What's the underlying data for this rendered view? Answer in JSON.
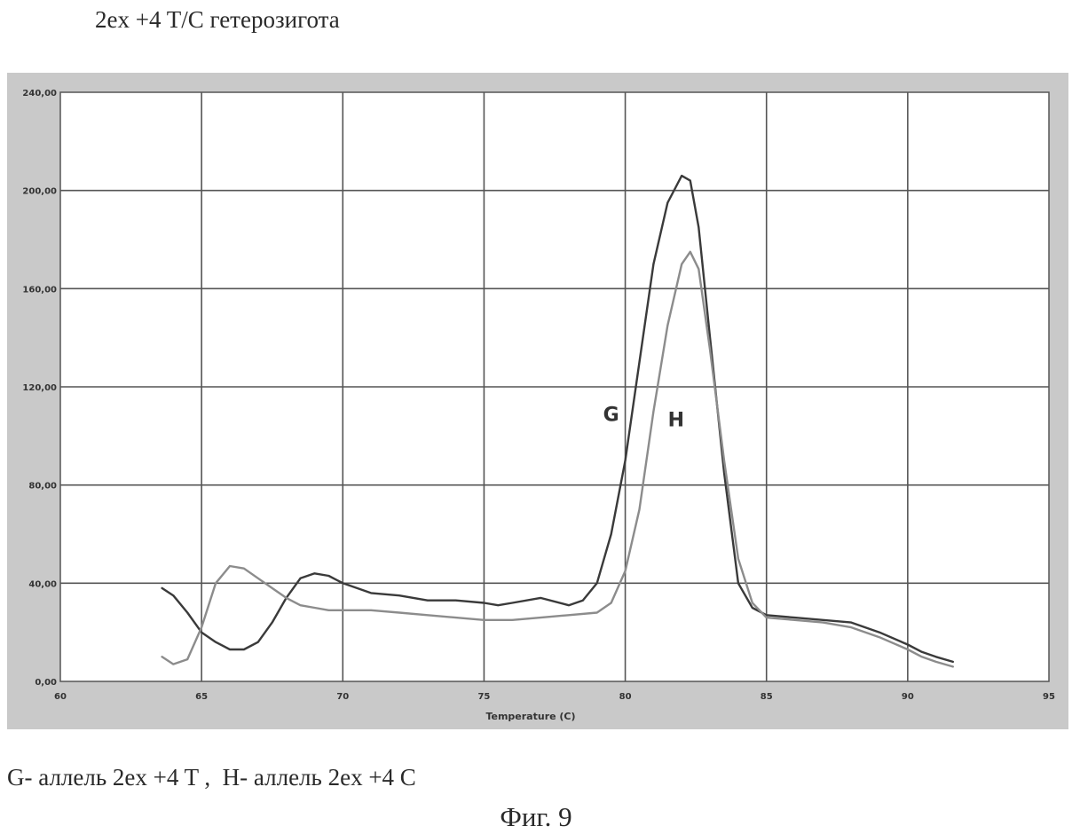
{
  "heading": "2ex +4 T/C гетерозигота",
  "caption": "G- аллель 2ex +4 T ,  H- аллель 2ex +4 C",
  "figure_label": "Фиг. 9",
  "chart_data": {
    "type": "line",
    "xlabel": "Temperature (C)",
    "ylabel": "",
    "xlim": [
      60,
      95
    ],
    "ylim": [
      0,
      240
    ],
    "x_ticks": [
      60,
      65,
      70,
      75,
      80,
      85,
      90,
      95
    ],
    "x_tick_labels": [
      "60",
      "65",
      "70",
      "75",
      "80",
      "85",
      "90",
      "95"
    ],
    "y_ticks": [
      0,
      40,
      80,
      120,
      160,
      200,
      240
    ],
    "y_tick_labels": [
      "0,00",
      "40,00",
      "80,00",
      "120,00",
      "160,00",
      "200,00",
      "240,00"
    ],
    "grid": true,
    "legend": "none",
    "colors": {
      "background": "#ffffff",
      "frame": "#c9c9c9",
      "grid": "#555555",
      "series_g": "#3a3a3a",
      "series_h": "#8c8c8c"
    },
    "series": [
      {
        "name": "G",
        "x": [
          63.6,
          64.0,
          64.5,
          65.0,
          65.5,
          66.0,
          66.5,
          67.0,
          67.5,
          68.0,
          68.5,
          69.0,
          69.5,
          70.0,
          71.0,
          72.0,
          73.0,
          74.0,
          75.0,
          75.5,
          76.0,
          77.0,
          78.0,
          78.5,
          79.0,
          79.5,
          80.0,
          80.5,
          81.0,
          81.5,
          82.0,
          82.3,
          82.6,
          83.0,
          83.5,
          84.0,
          84.5,
          85.0,
          86.0,
          87.0,
          88.0,
          89.0,
          90.0,
          90.5,
          91.0,
          91.6
        ],
        "y": [
          38,
          35,
          28,
          20,
          16,
          13,
          13,
          16,
          24,
          34,
          42,
          44,
          43,
          40,
          36,
          35,
          33,
          33,
          32,
          31,
          32,
          34,
          31,
          33,
          40,
          60,
          90,
          130,
          170,
          195,
          206,
          204,
          185,
          140,
          85,
          40,
          30,
          27,
          26,
          25,
          24,
          20,
          15,
          12,
          10,
          8
        ]
      },
      {
        "name": "H",
        "x": [
          63.6,
          64.0,
          64.5,
          65.0,
          65.5,
          66.0,
          66.5,
          67.0,
          67.5,
          68.0,
          68.5,
          69.0,
          69.5,
          70.0,
          71.0,
          72.0,
          73.0,
          74.0,
          75.0,
          76.0,
          77.0,
          78.0,
          79.0,
          79.5,
          80.0,
          80.5,
          81.0,
          81.5,
          82.0,
          82.3,
          82.6,
          83.0,
          83.5,
          84.0,
          84.5,
          85.0,
          86.0,
          87.0,
          88.0,
          89.0,
          90.0,
          90.5,
          91.0,
          91.6
        ],
        "y": [
          10,
          7,
          9,
          22,
          40,
          47,
          46,
          42,
          38,
          34,
          31,
          30,
          29,
          29,
          29,
          28,
          27,
          26,
          25,
          25,
          26,
          27,
          28,
          32,
          45,
          70,
          110,
          145,
          170,
          175,
          168,
          135,
          90,
          50,
          32,
          26,
          25,
          24,
          22,
          18,
          13,
          10,
          8,
          6
        ]
      }
    ],
    "annotations": [
      {
        "text": "G",
        "x": 79.5,
        "y": 106
      },
      {
        "text": "H",
        "x": 81.8,
        "y": 104
      }
    ]
  }
}
